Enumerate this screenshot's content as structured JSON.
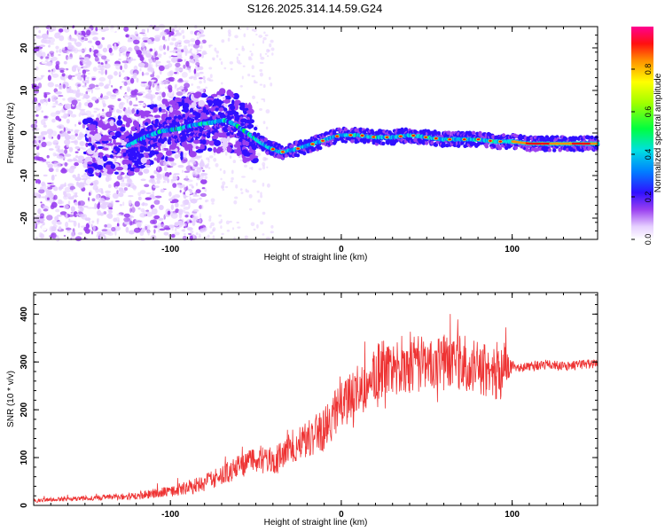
{
  "title": "S126.2025.314.14.59.G24",
  "chart_data": [
    {
      "type": "heatmap",
      "title": "S126.2025.314.14.59.G24",
      "xlabel": "Height of straight line (km)",
      "ylabel": "Frequency (Hz)",
      "xlim": [
        -180,
        150
      ],
      "ylim": [
        -25,
        25
      ],
      "xticks": [
        -100,
        0,
        100
      ],
      "yticks": [
        -20,
        -10,
        0,
        10,
        20
      ],
      "ridge": {
        "x": [
          -125,
          -115,
          -105,
          -95,
          -85,
          -75,
          -68,
          -62,
          -55,
          -48,
          -42,
          -35,
          -28,
          -20,
          -12,
          -5,
          0,
          10,
          20,
          30,
          40,
          50,
          60,
          70,
          80,
          90,
          100,
          110,
          120,
          130,
          140,
          150
        ],
        "freq": [
          -3,
          -1,
          0.5,
          1,
          2,
          2.5,
          3,
          2,
          0,
          -2,
          -3.5,
          -4.5,
          -4,
          -3,
          -2,
          -1,
          -0.5,
          -0.5,
          -1,
          -1,
          -0.5,
          -1,
          -1.5,
          -1.5,
          -1.5,
          -2,
          -2,
          -2.5,
          -2.5,
          -2.5,
          -2.5,
          -2.5
        ]
      },
      "colorbar": {
        "label": "Normalized spectral amplitude",
        "ticks": [
          "0.0",
          "0.2",
          "0.4",
          "0.6",
          "0.8"
        ],
        "range": [
          0,
          1
        ]
      }
    },
    {
      "type": "line",
      "xlabel": "Height of straight line (km)",
      "ylabel": "SNR (10 * v/v)",
      "xlim": [
        -180,
        150
      ],
      "ylim": [
        0,
        445
      ],
      "xticks": [
        -100,
        0,
        100
      ],
      "yticks": [
        0,
        100,
        200,
        300,
        400
      ],
      "series": [
        {
          "name": "SNR",
          "color": "#ee3333",
          "envelope_x": [
            -180,
            -150,
            -120,
            -100,
            -80,
            -60,
            -50,
            -40,
            -30,
            -20,
            -10,
            0,
            10,
            20,
            30,
            40,
            50,
            60,
            70,
            80,
            90,
            95,
            100,
            110,
            120,
            130,
            140,
            150
          ],
          "envelope_y": [
            10,
            15,
            20,
            30,
            45,
            80,
            100,
            90,
            120,
            140,
            160,
            210,
            240,
            280,
            290,
            300,
            295,
            300,
            300,
            290,
            280,
            290,
            290,
            290,
            295,
            290,
            295,
            295
          ],
          "noise_amplitude": [
            4,
            5,
            8,
            12,
            18,
            25,
            30,
            30,
            35,
            40,
            45,
            50,
            60,
            60,
            60,
            65,
            60,
            60,
            60,
            55,
            60,
            60,
            12,
            10,
            10,
            10,
            10,
            10
          ]
        }
      ]
    }
  ]
}
